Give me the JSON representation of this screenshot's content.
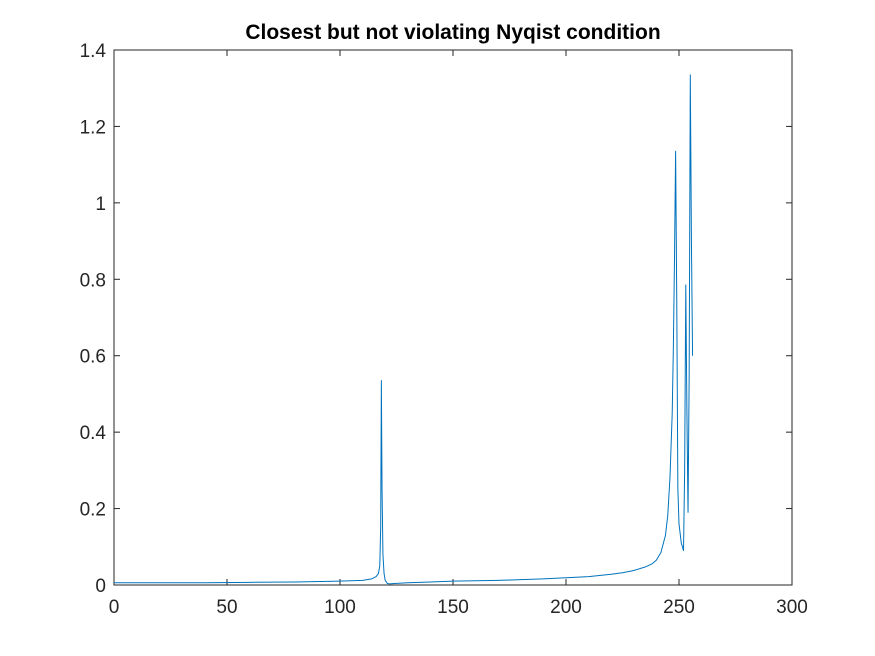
{
  "chart_data": {
    "type": "line",
    "title": "Closest but not violating Nyqist condition",
    "xlabel": "",
    "ylabel": "",
    "xlim": [
      0,
      300
    ],
    "ylim": [
      0,
      1.4
    ],
    "xticks": [
      0,
      50,
      100,
      150,
      200,
      250,
      300
    ],
    "yticks": [
      0,
      0.2,
      0.4,
      0.6,
      0.8,
      1,
      1.2,
      1.4
    ],
    "xtick_labels": [
      "0",
      "50",
      "100",
      "150",
      "200",
      "250",
      "300"
    ],
    "ytick_labels": [
      "0",
      "0.2",
      "0.4",
      "0.6",
      "0.8",
      "1",
      "1.2",
      "1.4"
    ],
    "grid": false,
    "line_color": "#0072BD",
    "axis_color": "#262626",
    "series": [
      {
        "x": [
          0,
          20,
          40,
          60,
          80,
          100,
          110,
          114,
          116,
          117,
          117.6,
          118,
          118.3,
          118.6,
          119,
          119.5,
          120,
          121,
          122,
          124,
          130,
          140,
          150,
          160,
          170,
          180,
          190,
          200,
          210,
          220,
          225,
          230,
          235,
          238,
          240,
          242,
          244,
          245,
          246,
          247,
          247.5,
          248,
          248.5,
          249,
          249.5,
          250,
          251,
          252,
          252.5,
          253,
          253.5,
          254,
          254.5,
          255,
          255.5,
          256
        ],
        "y": [
          0.006,
          0.006,
          0.006,
          0.007,
          0.008,
          0.01,
          0.012,
          0.016,
          0.022,
          0.03,
          0.05,
          0.15,
          0.535,
          0.25,
          0.08,
          0.03,
          0.012,
          0.004,
          0.003,
          0.004,
          0.006,
          0.008,
          0.01,
          0.011,
          0.012,
          0.014,
          0.016,
          0.019,
          0.022,
          0.028,
          0.032,
          0.038,
          0.047,
          0.055,
          0.065,
          0.085,
          0.13,
          0.18,
          0.28,
          0.45,
          0.62,
          0.85,
          1.135,
          0.75,
          0.25,
          0.16,
          0.11,
          0.09,
          0.3,
          0.785,
          0.45,
          0.19,
          0.55,
          1.335,
          0.9,
          0.6
        ]
      }
    ]
  }
}
